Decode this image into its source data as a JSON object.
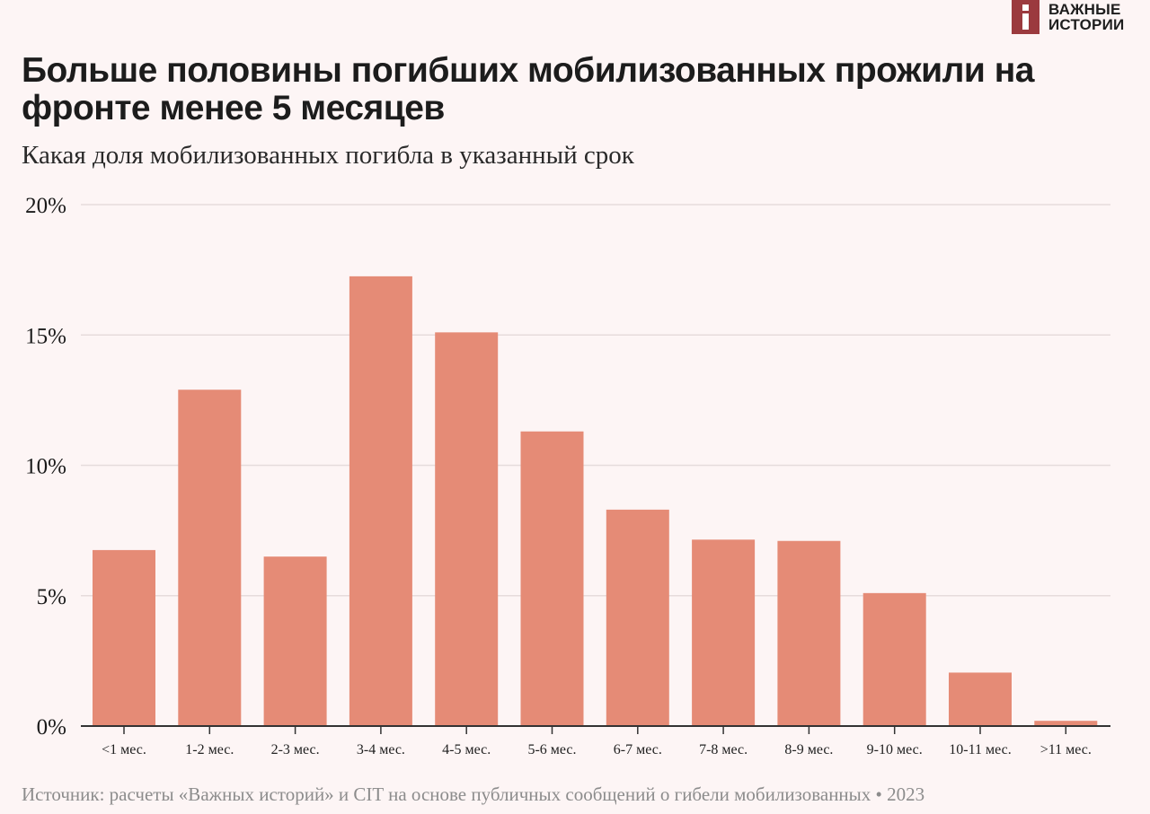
{
  "logo": {
    "line1": "ВАЖНЫЕ",
    "line2": "ИСТОРИИ",
    "color": "#9b3a3e"
  },
  "title": "Больше половины погибших мобилизованных прожили на фронте менее 5 месяцев",
  "subtitle": "Какая доля мобилизованных погибла в указанный срок",
  "source": "Источник: расчеты «Важных историй» и CIT на основе публичных сообщений о гибели мобилизованных • 2023",
  "chart_data": {
    "type": "bar",
    "categories": [
      "<1 мес.",
      "1-2 мес.",
      "2-3 мес.",
      "3-4 мес.",
      "4-5 мес.",
      "5-6 мес.",
      "6-7 мес.",
      "7-8 мес.",
      "8-9 мес.",
      "9-10 мес.",
      "10-11 мес.",
      ">11 мес."
    ],
    "values": [
      6.75,
      12.9,
      6.5,
      17.25,
      15.1,
      11.3,
      8.3,
      7.15,
      7.1,
      5.1,
      2.05,
      0.2
    ],
    "unit": "%",
    "ylim": [
      0,
      20
    ],
    "yticks": [
      0,
      5,
      10,
      15,
      20
    ],
    "ytick_labels": [
      "0%",
      "5%",
      "10%",
      "15%",
      "20%"
    ],
    "grid": true,
    "bar_color": "#e58b76"
  }
}
